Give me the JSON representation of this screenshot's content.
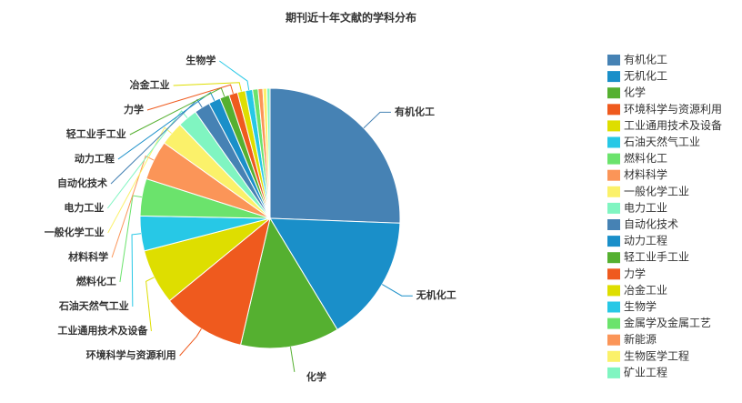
{
  "chart_data": {
    "type": "pie",
    "title": "期刊近十年文献的学科分布",
    "categories": [
      "有机化工",
      "无机化工",
      "化学",
      "环境科学与资源利用",
      "工业通用技术及设备",
      "石油天然气工业",
      "燃料化工",
      "材料科学",
      "一般化学工业",
      "电力工业",
      "自动化技术",
      "动力工程",
      "轻工业手工业",
      "力学",
      "冶金工业",
      "生物学",
      "金属学及金属工艺",
      "新能源",
      "生物医学工程",
      "矿业工程"
    ],
    "values": [
      26,
      16,
      12.5,
      10.6,
      7,
      4.4,
      4.7,
      5,
      3,
      2.5,
      2,
      1.5,
      1.2,
      1.1,
      1,
      0.9,
      0.7,
      0.6,
      0.5,
      0.4
    ],
    "colors": [
      "#4682b4",
      "#1a8fc9",
      "#55b030",
      "#ef5a1e",
      "#dede00",
      "#27c8e6",
      "#6be36c",
      "#fb9558",
      "#fbf16a",
      "#80f5c1",
      "#4682b4",
      "#1a8fc9",
      "#55b030",
      "#ef5a1e",
      "#dede00",
      "#27c8e6",
      "#6be36c",
      "#fb9558",
      "#fbf16a",
      "#80f5c1"
    ],
    "legend": "right"
  }
}
